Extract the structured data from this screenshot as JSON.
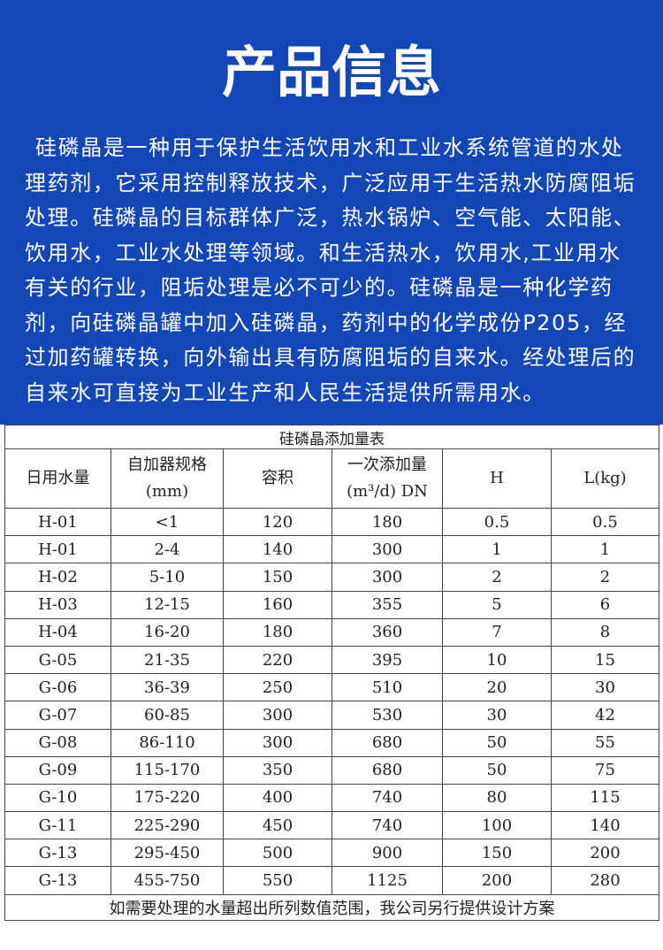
{
  "header": {
    "title": "产品信息"
  },
  "description": "硅磷晶是一种用于保护生活饮用水和工业水系统管道的水处理药剂，它采用控制释放技术，广泛应用于生活热水防腐阻垢处理。硅磷晶的目标群体广泛，热水锅炉、空气能、太阳能、饮用水，工业水处理等领域。和生活热水，饮用水,工业用水有关的行业，阻垢处理是必不可少的。硅磷晶是一种化学药剂，向硅磷晶罐中加入硅磷晶，药剂中的化学成份P205，经过加药罐转换，向外输出具有防腐阻垢的自来水。经处理后的自来水可直接为工业生产和人民生活提供所需用水。",
  "table": {
    "title": "硅磷晶添加量表",
    "columns": [
      [
        "日用水量"
      ],
      [
        "自加器规格",
        "(mm)"
      ],
      [
        "容积"
      ],
      [
        "一次添加量",
        "(m³/d) DN"
      ],
      [
        "H"
      ],
      [
        "L(kg)"
      ]
    ],
    "rows": [
      [
        "H-01",
        "<1",
        "120",
        "180",
        "0.5",
        "0.5"
      ],
      [
        "H-01",
        "2-4",
        "140",
        "300",
        "1",
        "1"
      ],
      [
        "H-02",
        "5-10",
        "150",
        "300",
        "2",
        "2"
      ],
      [
        "H-03",
        "12-15",
        "160",
        "355",
        "5",
        "6"
      ],
      [
        "H-04",
        "16-20",
        "180",
        "360",
        "7",
        "8"
      ],
      [
        "G-05",
        "21-35",
        "220",
        "395",
        "10",
        "15"
      ],
      [
        "G-06",
        "36-39",
        "250",
        "510",
        "20",
        "30"
      ],
      [
        "G-07",
        "60-85",
        "300",
        "530",
        "30",
        "42"
      ],
      [
        "G-08",
        "86-110",
        "300",
        "680",
        "50",
        "55"
      ],
      [
        "G-09",
        "115-170",
        "350",
        "680",
        "50",
        "75"
      ],
      [
        "G-10",
        "175-220",
        "400",
        "740",
        "80",
        "115"
      ],
      [
        "G-11",
        "225-290",
        "450",
        "740",
        "100",
        "140"
      ],
      [
        "G-13",
        "295-450",
        "500",
        "900",
        "150",
        "200"
      ],
      [
        "G-13",
        "455-750",
        "550",
        "1125",
        "200",
        "280"
      ]
    ],
    "note": "如需要处理的水量超出所列数值范围，我公司另行提供设计方案"
  }
}
